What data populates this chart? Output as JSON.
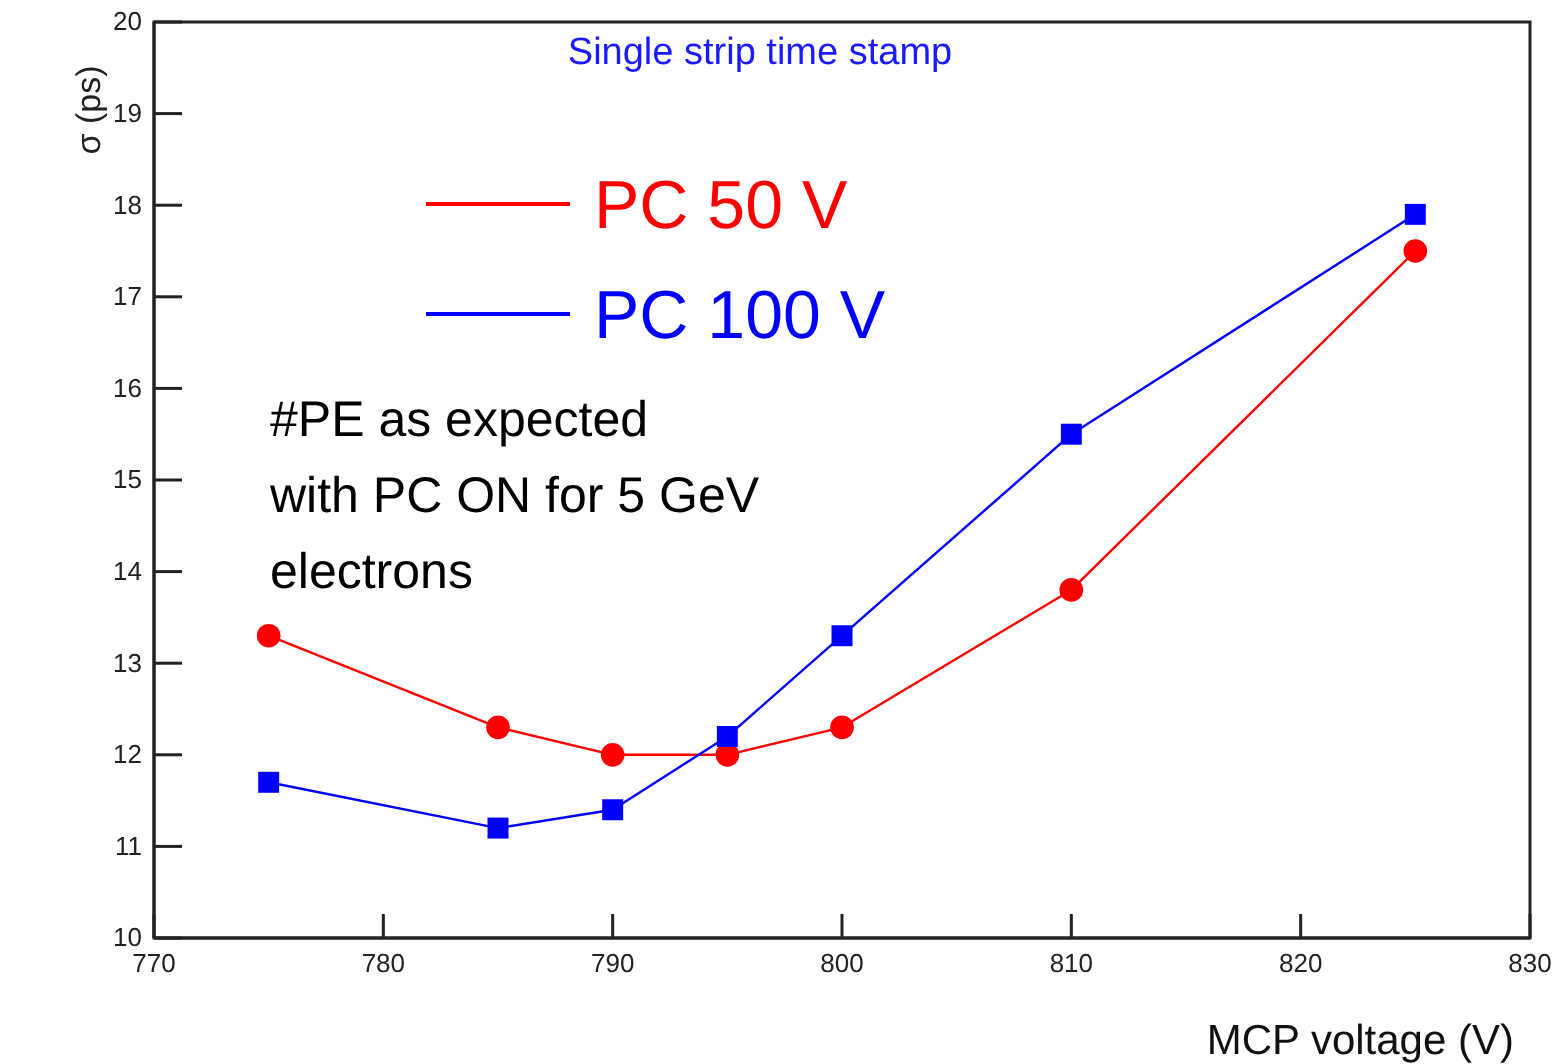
{
  "chart_data": {
    "type": "line",
    "title": "Single strip time stamp",
    "xlabel": "MCP voltage (V)",
    "ylabel": "σ (ps)",
    "x": [
      775,
      785,
      790,
      795,
      800,
      810,
      825
    ],
    "series": [
      {
        "name": "PC 50 V",
        "color": "#ff0000",
        "marker": "circle",
        "values": [
          13.3,
          12.3,
          12.0,
          12.0,
          12.3,
          13.8,
          17.5
        ]
      },
      {
        "name": "PC 100 V",
        "color": "#0000ff",
        "marker": "square",
        "values": [
          11.7,
          11.2,
          11.4,
          12.2,
          13.3,
          15.5,
          17.9
        ]
      }
    ],
    "xlim": [
      770,
      830
    ],
    "xticks": [
      770,
      780,
      790,
      800,
      810,
      820,
      830
    ],
    "ylim": [
      10,
      20
    ],
    "yticks": [
      10,
      11,
      12,
      13,
      14,
      15,
      16,
      17,
      18,
      19,
      20
    ],
    "annotations": [
      "#PE as expected\nwith PC ON for 5 GeV\nelectrons"
    ],
    "grid": false,
    "legend": "top",
    "line_style": "solid"
  }
}
